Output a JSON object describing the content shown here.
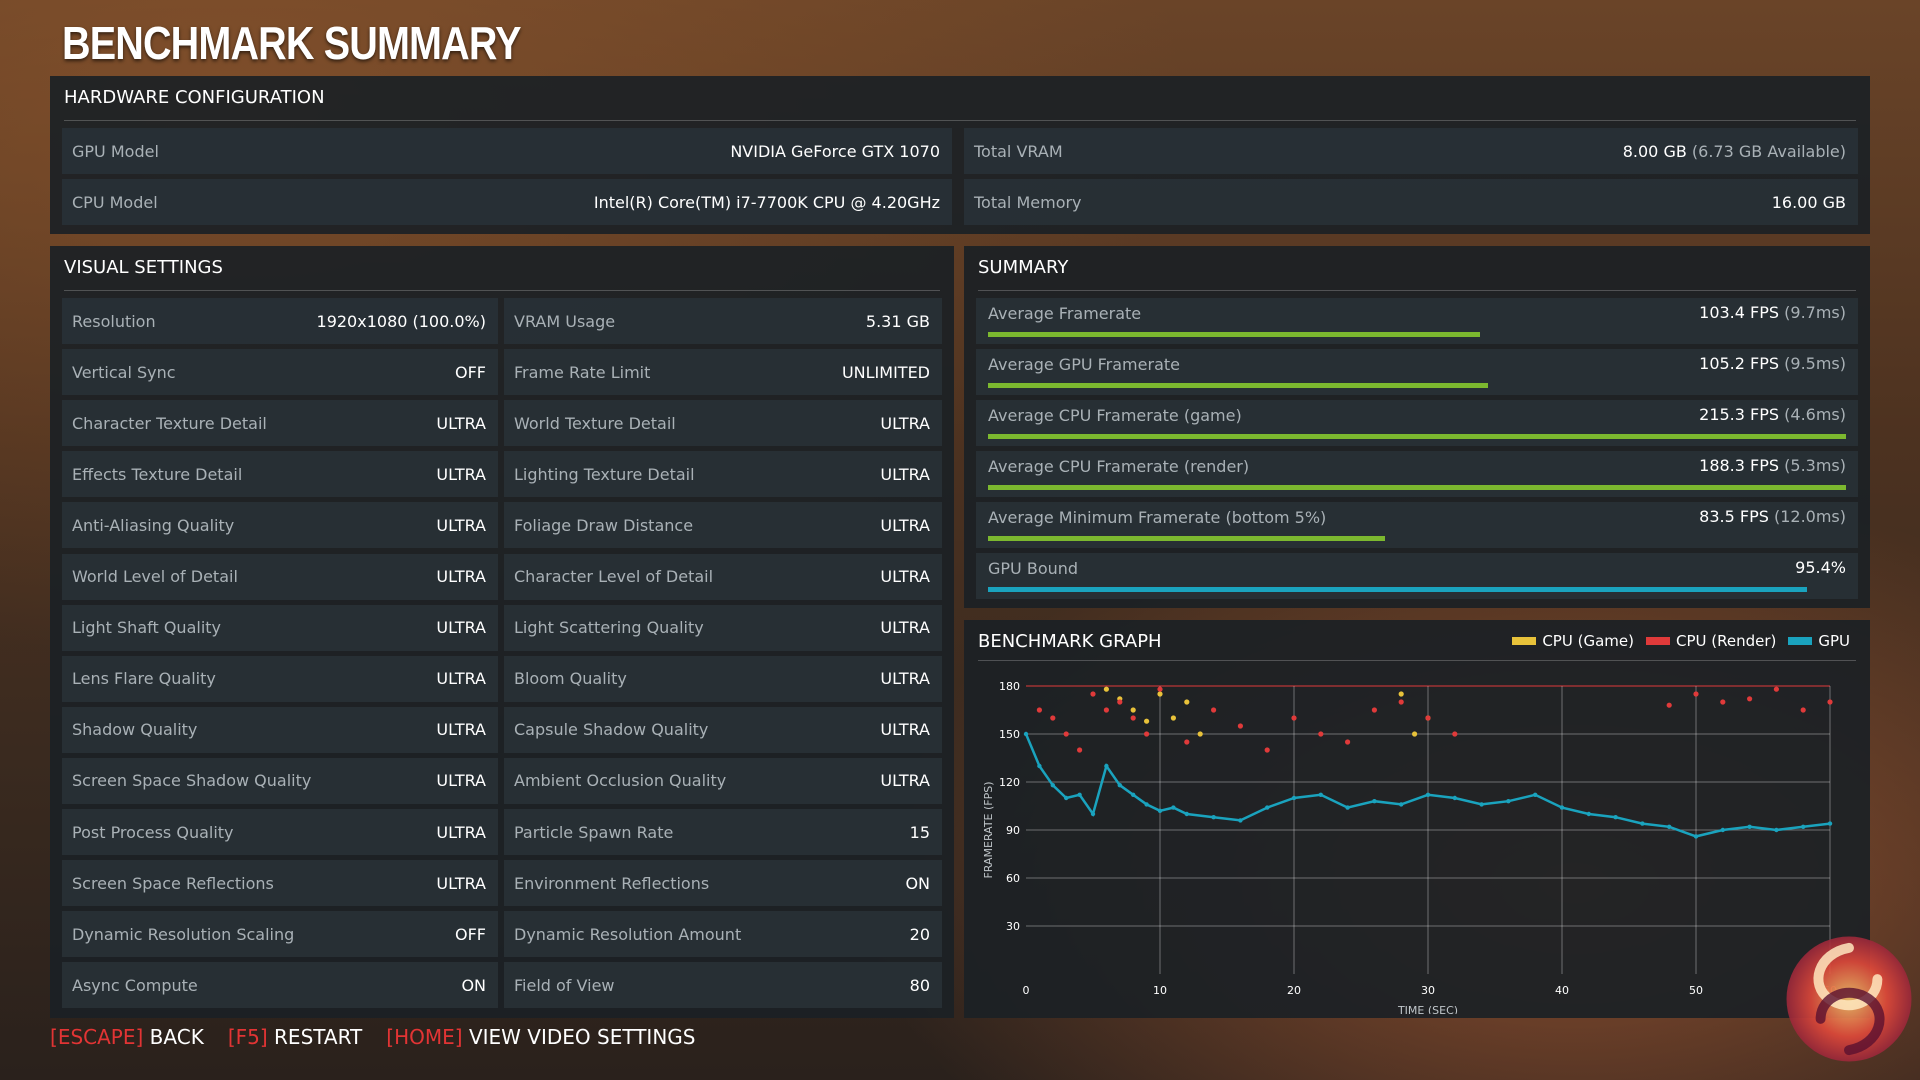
{
  "title": "BENCHMARK SUMMARY",
  "hardware": {
    "header": "HARDWARE CONFIGURATION",
    "gpu_label": "GPU Model",
    "gpu_value": "NVIDIA GeForce GTX 1070",
    "cpu_label": "CPU Model",
    "cpu_value": "Intel(R) Core(TM) i7-7700K CPU @ 4.20GHz",
    "vram_label": "Total VRAM",
    "vram_value": "8.00 GB",
    "vram_sub": "(6.73 GB Available)",
    "mem_label": "Total Memory",
    "mem_value": "16.00 GB"
  },
  "visual": {
    "header": "VISUAL SETTINGS",
    "left": [
      {
        "label": "Resolution",
        "value": "1920x1080 (100.0%)"
      },
      {
        "label": "Vertical Sync",
        "value": "OFF"
      },
      {
        "label": "Character Texture Detail",
        "value": "ULTRA"
      },
      {
        "label": "Effects Texture Detail",
        "value": "ULTRA"
      },
      {
        "label": "Anti-Aliasing Quality",
        "value": "ULTRA"
      },
      {
        "label": "World Level of Detail",
        "value": "ULTRA"
      },
      {
        "label": "Light Shaft Quality",
        "value": "ULTRA"
      },
      {
        "label": "Lens Flare Quality",
        "value": "ULTRA"
      },
      {
        "label": "Shadow Quality",
        "value": "ULTRA"
      },
      {
        "label": "Screen Space Shadow Quality",
        "value": "ULTRA"
      },
      {
        "label": "Post Process Quality",
        "value": "ULTRA"
      },
      {
        "label": "Screen Space Reflections",
        "value": "ULTRA"
      },
      {
        "label": "Dynamic Resolution Scaling",
        "value": "OFF"
      },
      {
        "label": "Async Compute",
        "value": "ON"
      }
    ],
    "right": [
      {
        "label": "VRAM Usage",
        "value": "5.31 GB"
      },
      {
        "label": "Frame Rate Limit",
        "value": "UNLIMITED"
      },
      {
        "label": "World Texture Detail",
        "value": "ULTRA"
      },
      {
        "label": "Lighting Texture Detail",
        "value": "ULTRA"
      },
      {
        "label": "Foliage Draw Distance",
        "value": "ULTRA"
      },
      {
        "label": "Character Level of Detail",
        "value": "ULTRA"
      },
      {
        "label": "Light Scattering Quality",
        "value": "ULTRA"
      },
      {
        "label": "Bloom Quality",
        "value": "ULTRA"
      },
      {
        "label": "Capsule Shadow Quality",
        "value": "ULTRA"
      },
      {
        "label": "Ambient Occlusion Quality",
        "value": "ULTRA"
      },
      {
        "label": "Particle Spawn Rate",
        "value": "15"
      },
      {
        "label": "Environment Reflections",
        "value": "ON"
      },
      {
        "label": "Dynamic Resolution Amount",
        "value": "20"
      },
      {
        "label": "Field of View",
        "value": "80"
      }
    ]
  },
  "summary": {
    "header": "SUMMARY",
    "rows": [
      {
        "label": "Average Framerate",
        "value": "103.4 FPS",
        "sub": "(9.7ms)",
        "fraction": 0.573
      },
      {
        "label": "Average GPU Framerate",
        "value": "105.2 FPS",
        "sub": "(9.5ms)",
        "fraction": 0.583
      },
      {
        "label": "Average CPU Framerate (game)",
        "value": "215.3 FPS",
        "sub": "(4.6ms)",
        "fraction": 1.0
      },
      {
        "label": "Average CPU Framerate (render)",
        "value": "188.3 FPS",
        "sub": "(5.3ms)",
        "fraction": 1.0
      },
      {
        "label": "Average Minimum Framerate (bottom 5%)",
        "value": "83.5 FPS",
        "sub": "(12.0ms)",
        "fraction": 0.463
      },
      {
        "label": "GPU Bound",
        "value": "95.4%",
        "sub": "",
        "fraction": 0.954
      }
    ]
  },
  "colors": {
    "bar_green": "#7cb82f",
    "bar_blue": "#1aa3be",
    "cpu_game": "#e8c23a",
    "cpu_render": "#e03a3a",
    "gpu": "#1aa3be",
    "key_red": "#e23434"
  },
  "graph": {
    "header": "BENCHMARK GRAPH",
    "legend": [
      {
        "name": "CPU (Game)",
        "color": "#e8c23a"
      },
      {
        "name": "CPU (Render)",
        "color": "#e03a3a"
      },
      {
        "name": "GPU",
        "color": "#1aa3be"
      }
    ]
  },
  "chart_data": {
    "type": "scatter",
    "title": "BENCHMARK GRAPH",
    "xlabel": "TIME (SEC)",
    "ylabel": "FRAMERATE (FPS)",
    "xlim": [
      0,
      60
    ],
    "ylim": [
      0,
      180
    ],
    "xticks": [
      0,
      10,
      20,
      30,
      40,
      50,
      60
    ],
    "yticks": [
      30,
      60,
      90,
      120,
      150,
      180
    ],
    "grid": true,
    "legend_position": "top-right",
    "series": [
      {
        "name": "CPU (Game)",
        "color": "#e8c23a",
        "x": [
          6,
          7,
          8,
          9,
          10,
          11,
          12,
          13,
          28,
          29,
          30
        ],
        "y": [
          178,
          172,
          165,
          158,
          175,
          160,
          170,
          150,
          175,
          150,
          160
        ]
      },
      {
        "name": "CPU (Render)",
        "color": "#e03a3a",
        "x": [
          1,
          2,
          3,
          4,
          5,
          6,
          7,
          8,
          9,
          10,
          12,
          14,
          16,
          18,
          20,
          22,
          24,
          26,
          28,
          30,
          32,
          48,
          50,
          52,
          54,
          56,
          58,
          60
        ],
        "y": [
          165,
          160,
          150,
          140,
          175,
          165,
          170,
          160,
          150,
          178,
          145,
          165,
          155,
          140,
          160,
          150,
          145,
          165,
          170,
          160,
          150,
          168,
          175,
          170,
          172,
          178,
          165,
          170
        ]
      },
      {
        "name": "GPU",
        "color": "#1aa3be",
        "x": [
          0,
          1,
          2,
          3,
          4,
          5,
          6,
          7,
          8,
          9,
          10,
          11,
          12,
          14,
          16,
          18,
          20,
          22,
          24,
          26,
          28,
          30,
          32,
          34,
          36,
          38,
          40,
          42,
          44,
          46,
          48,
          50,
          52,
          54,
          56,
          58,
          60
        ],
        "y": [
          150,
          130,
          118,
          110,
          112,
          100,
          130,
          118,
          112,
          106,
          102,
          104,
          100,
          98,
          96,
          104,
          110,
          112,
          104,
          108,
          106,
          112,
          110,
          106,
          108,
          112,
          104,
          100,
          98,
          94,
          92,
          86,
          90,
          92,
          90,
          92,
          94
        ]
      }
    ]
  },
  "footer": {
    "escape_key": "ESCAPE",
    "escape_label": "BACK",
    "f5_key": "F5",
    "f5_label": "RESTART",
    "home_key": "HOME",
    "home_label": "VIEW VIDEO SETTINGS"
  }
}
